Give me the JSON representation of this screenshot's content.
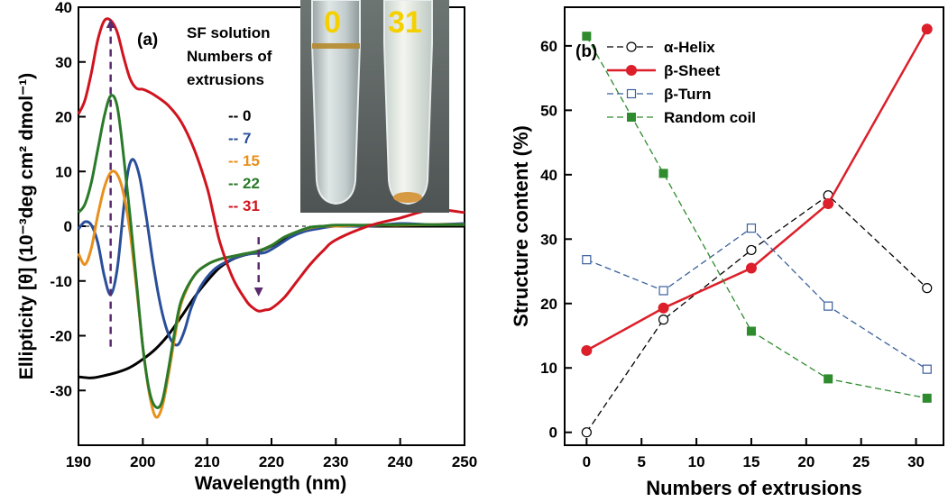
{
  "colors": {
    "black": "#000000",
    "blue": "#2a4f9a",
    "orange": "#e8901c",
    "green": "#2a7a2a",
    "red": "#d0141f",
    "purple": "#5b2a6e",
    "sheet_red": "#dc1f2a",
    "turn_blue": "#3a5f9c",
    "coil_green": "#2e8b2e"
  },
  "chart_data": [
    {
      "type": "line",
      "panel_label": "(a)",
      "xlabel": "Wavelength (nm)",
      "ylabel": "Ellipticity [θ] (10⁻³deg cm² dmol⁻¹)",
      "xlim": [
        190,
        250
      ],
      "ylim": [
        -40,
        40
      ],
      "xticks": [
        190,
        200,
        210,
        220,
        230,
        240,
        250
      ],
      "yticks": [
        -30,
        -20,
        -10,
        0,
        10,
        20,
        30,
        40
      ],
      "ytick_labels": [
        "-30",
        "-20",
        "-10",
        "0",
        "10",
        "20",
        "30",
        "40"
      ],
      "legend_title": [
        "SF solution",
        "Numbers of",
        "extrusions"
      ],
      "legend_location": "top-center",
      "inset_photo_labels": [
        "0",
        "31"
      ],
      "series": [
        {
          "name": "-- 0",
          "color_key": "black",
          "x": [
            190,
            192,
            194,
            196,
            198,
            200,
            202,
            204,
            206,
            208,
            210,
            212,
            214,
            216,
            218,
            220,
            222,
            224,
            226,
            228,
            230,
            235,
            240,
            245,
            250
          ],
          "y": [
            -27.5,
            -27.7,
            -27.3,
            -26.7,
            -25.8,
            -24.3,
            -22.4,
            -19.8,
            -16.5,
            -13,
            -10,
            -7.5,
            -6,
            -5.2,
            -4.6,
            -3.6,
            -2.2,
            -1,
            -0.3,
            0,
            0,
            0,
            0,
            0,
            0
          ]
        },
        {
          "name": "-- 7",
          "color_key": "blue",
          "x": [
            190,
            191,
            192,
            193,
            194,
            195,
            196,
            197,
            197.7,
            198.5,
            199.5,
            200.5,
            201.5,
            202.5,
            203.5,
            204.5,
            205.5,
            206.5,
            207.5,
            209,
            211,
            213,
            215,
            217,
            219,
            221,
            223,
            225,
            227,
            230,
            235,
            240,
            245,
            250
          ],
          "y": [
            -0.5,
            0.8,
            0.2,
            -3,
            -9,
            -12.5,
            -8,
            3,
            10,
            12.2,
            9,
            2,
            -6,
            -13,
            -18,
            -21,
            -21.6,
            -19,
            -15,
            -11,
            -8,
            -6.5,
            -5.5,
            -5,
            -4.8,
            -3.5,
            -2,
            -1,
            -0.5,
            0,
            0,
            0.5,
            0.3,
            0.5
          ]
        },
        {
          "name": "-- 15",
          "color_key": "orange",
          "x": [
            190,
            191,
            192,
            193,
            194,
            195,
            196,
            197,
            198,
            199,
            200,
            201,
            202,
            203,
            204,
            205,
            206,
            208,
            210,
            212,
            214,
            216,
            218,
            220,
            222,
            224,
            226,
            228,
            230,
            235,
            240,
            245,
            250
          ],
          "y": [
            -5,
            -7,
            -4,
            2,
            7,
            9.8,
            9.5,
            6,
            -1,
            -11,
            -22,
            -30.5,
            -34.8,
            -33,
            -27,
            -20,
            -14,
            -9,
            -7,
            -6,
            -5.5,
            -5,
            -4.5,
            -3.5,
            -2,
            -1,
            -0.3,
            0,
            0,
            0.2,
            0.2,
            0.3,
            0.3
          ]
        },
        {
          "name": "-- 22",
          "color_key": "green",
          "x": [
            190,
            191,
            192,
            193,
            194,
            195,
            196,
            197,
            198,
            199,
            200,
            201,
            202,
            203,
            204,
            205,
            206,
            208,
            210,
            212,
            214,
            216,
            218,
            220,
            222,
            224,
            226,
            228,
            230,
            235,
            240,
            245,
            250
          ],
          "y": [
            2.5,
            4,
            8,
            14,
            20,
            23.8,
            22,
            13,
            2,
            -10,
            -22,
            -30,
            -33,
            -32,
            -26,
            -19,
            -13.5,
            -9,
            -7,
            -6,
            -5.5,
            -5,
            -4.5,
            -3.5,
            -2,
            -1,
            -0.2,
            0,
            0.2,
            0.2,
            0.3,
            0.3,
            0.3
          ]
        },
        {
          "name": "-- 31",
          "color_key": "red",
          "x": [
            190,
            191,
            192,
            193,
            194,
            195,
            196,
            197,
            198,
            199,
            200,
            201,
            202,
            204,
            206,
            208,
            210,
            211,
            212,
            214,
            216,
            217,
            218,
            219,
            220,
            222,
            224,
            226,
            228,
            230,
            235,
            240,
            245,
            250
          ],
          "y": [
            20.5,
            23,
            28,
            34,
            37.5,
            37.6,
            35.5,
            31,
            27,
            25.2,
            25,
            24.5,
            23.8,
            22,
            19,
            14,
            7,
            2,
            -3,
            -9.5,
            -13.5,
            -14.8,
            -15.5,
            -15.3,
            -15,
            -13,
            -10,
            -7,
            -4.5,
            -2.5,
            0,
            1.5,
            3,
            2.5
          ]
        }
      ],
      "annotations": [
        {
          "type": "dashed-arrow",
          "x": 195,
          "y_from": -22,
          "y_to": 37
        },
        {
          "type": "dashed-arrow",
          "x": 218,
          "y_from": -2,
          "y_to": -12
        }
      ]
    },
    {
      "type": "line",
      "panel_label": "(b)",
      "xlabel": "Numbers of extrusions",
      "ylabel": "Structure content (%)",
      "xlim": [
        -2,
        32.5
      ],
      "ylim": [
        -2,
        66
      ],
      "xticks": [
        0,
        5,
        10,
        15,
        20,
        25,
        30
      ],
      "yticks": [
        0,
        10,
        20,
        30,
        40,
        50,
        60
      ],
      "legend_location": "top-left",
      "categories": [
        0,
        7,
        15,
        22,
        31
      ],
      "series": [
        {
          "name": "α-Helix",
          "color_key": "black",
          "style": "dashed",
          "marker": "open-circle",
          "values": [
            0,
            17.5,
            28.3,
            36.8,
            22.4
          ]
        },
        {
          "name": "β-Sheet",
          "color_key": "sheet_red",
          "style": "solid",
          "marker": "filled-circle",
          "values": [
            12.7,
            19.3,
            25.5,
            35.5,
            62.6
          ]
        },
        {
          "name": "β-Turn",
          "color_key": "turn_blue",
          "style": "dashed",
          "marker": "open-square",
          "values": [
            26.8,
            22,
            31.7,
            19.6,
            9.8
          ]
        },
        {
          "name": "Random coil",
          "color_key": "coil_green",
          "style": "dashed",
          "marker": "filled-square",
          "values": [
            61.5,
            40.2,
            15.7,
            8.3,
            5.3
          ]
        }
      ]
    }
  ]
}
